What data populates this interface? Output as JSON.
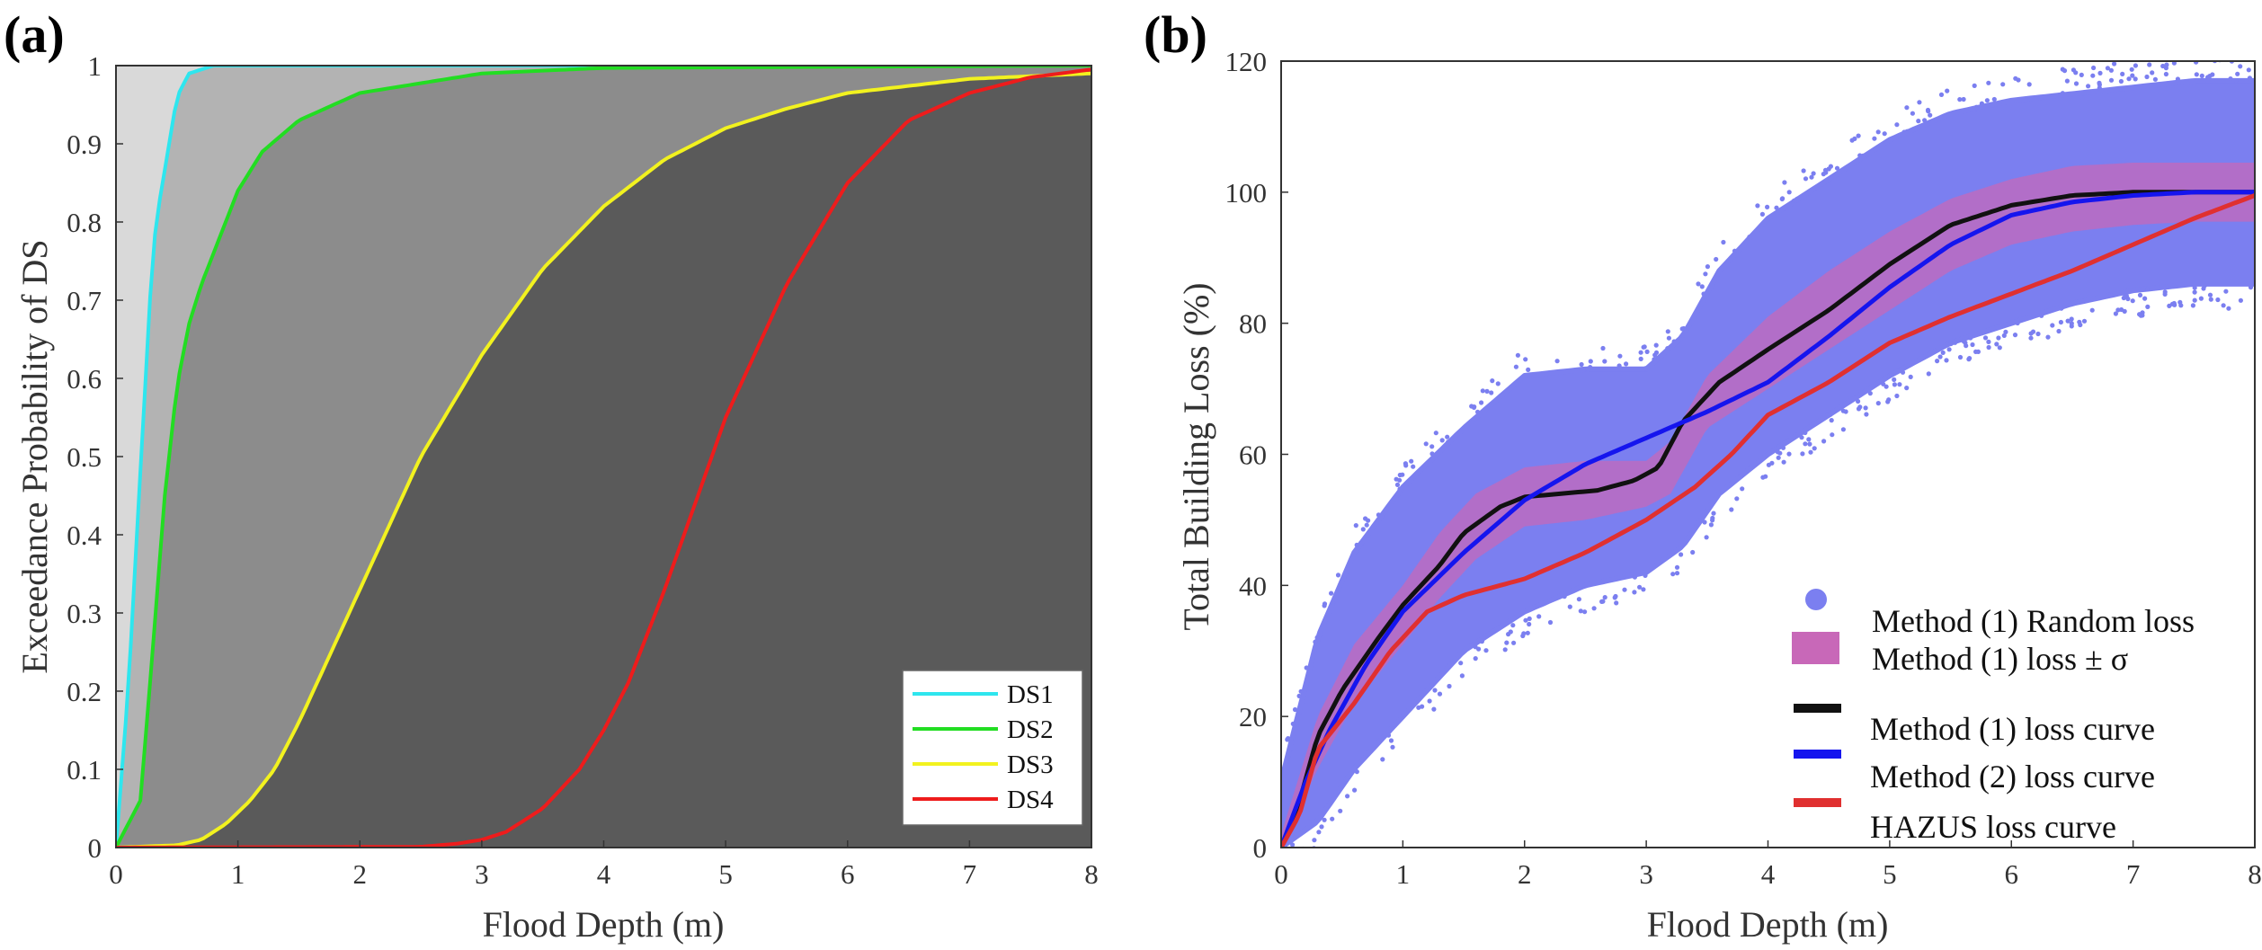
{
  "panels": {
    "a": {
      "label": "(a)"
    },
    "b": {
      "label": "(b)"
    }
  },
  "chart_data": [
    {
      "id": "a",
      "type": "line",
      "title": "",
      "xlabel": "Flood Depth (m)",
      "ylabel": "Exceedance Probability of DS",
      "xlim": [
        0,
        8
      ],
      "ylim": [
        0,
        1
      ],
      "xticks": [
        "0",
        "1",
        "2",
        "3",
        "4",
        "5",
        "6",
        "7",
        "8"
      ],
      "yticks": [
        "0",
        "0.1",
        "0.2",
        "0.3",
        "0.4",
        "0.5",
        "0.6",
        "0.7",
        "0.8",
        "0.9",
        "1"
      ],
      "grid": false,
      "legend": "bottom-right",
      "region_fills": [
        "#d9d9d9",
        "#b3b3b3",
        "#8c8c8c",
        "#5a5a5a"
      ],
      "series": [
        {
          "name": "DS1",
          "color": "#2ee6ee",
          "x": [
            0,
            0.1,
            0.2,
            0.3,
            0.35,
            0.5,
            0.6,
            0.8,
            1.0,
            8
          ],
          "y": [
            0,
            0.2,
            0.48,
            0.76,
            0.82,
            0.96,
            0.99,
            1.0,
            1.0,
            1.0
          ]
        },
        {
          "name": "DS2",
          "color": "#22dd22",
          "x": [
            0,
            0.2,
            0.3,
            0.4,
            0.5,
            0.6,
            0.7,
            0.8,
            1.0,
            1.2,
            1.5,
            2.0,
            3.0,
            4.0,
            8
          ],
          "y": [
            0,
            0.06,
            0.25,
            0.45,
            0.59,
            0.67,
            0.72,
            0.76,
            0.84,
            0.89,
            0.93,
            0.965,
            0.99,
            0.997,
            1.0
          ]
        },
        {
          "name": "DS3",
          "color": "#f2f21f",
          "x": [
            0,
            0.5,
            0.7,
            0.9,
            1.1,
            1.3,
            1.5,
            2.0,
            2.5,
            3.0,
            3.5,
            4.0,
            4.5,
            5.0,
            5.5,
            6.0,
            7.0,
            8.0
          ],
          "y": [
            0,
            0.003,
            0.01,
            0.03,
            0.06,
            0.1,
            0.16,
            0.33,
            0.5,
            0.63,
            0.74,
            0.82,
            0.88,
            0.92,
            0.945,
            0.965,
            0.983,
            0.99
          ]
        },
        {
          "name": "DS4",
          "color": "#ee1c1c",
          "x": [
            0,
            2.5,
            2.8,
            3.0,
            3.2,
            3.5,
            3.8,
            4.0,
            4.2,
            4.5,
            5.0,
            5.5,
            6.0,
            6.5,
            7.0,
            7.5,
            8.0
          ],
          "y": [
            0,
            0.001,
            0.005,
            0.01,
            0.02,
            0.05,
            0.1,
            0.15,
            0.21,
            0.33,
            0.55,
            0.72,
            0.85,
            0.93,
            0.965,
            0.985,
            0.995
          ]
        }
      ]
    },
    {
      "id": "b",
      "type": "scatter",
      "title": "",
      "xlabel": "Flood Depth (m)",
      "ylabel": "Total Building Loss (%)",
      "xlim": [
        0,
        8
      ],
      "ylim": [
        0,
        120
      ],
      "xticks": [
        "0",
        "1",
        "2",
        "3",
        "4",
        "5",
        "6",
        "7",
        "8"
      ],
      "yticks": [
        "0",
        "20",
        "40",
        "60",
        "80",
        "100",
        "120"
      ],
      "grid": false,
      "legend": "bottom-right",
      "scatter_band": {
        "name": "Method (1) Random loss",
        "color": "#7b7ff0",
        "x": [
          0,
          0.3,
          0.6,
          1.0,
          1.5,
          2.0,
          2.5,
          3.0,
          3.3,
          3.6,
          4.0,
          4.5,
          5.0,
          5.5,
          6.0,
          6.5,
          7.0,
          7.5,
          8.0
        ],
        "upper": [
          10,
          32,
          45,
          55,
          64,
          72,
          73,
          73,
          78,
          88,
          96,
          102,
          108,
          112,
          114,
          115,
          116,
          117,
          117
        ],
        "lower": [
          0,
          4,
          12,
          20,
          30,
          36,
          40,
          42,
          46,
          54,
          60,
          66,
          72,
          77,
          80,
          83,
          85,
          86,
          86
        ]
      },
      "sigma_band": {
        "name": "Method (1) loss ± σ",
        "color": "#c868b8",
        "x": [
          0,
          0.3,
          0.6,
          1.0,
          1.3,
          1.6,
          2.0,
          2.5,
          3.0,
          3.2,
          3.5,
          4.0,
          4.5,
          5.0,
          5.5,
          6.0,
          6.5,
          7.0,
          7.5,
          8.0
        ],
        "upper": [
          2,
          20,
          31,
          40,
          48,
          54,
          58,
          59,
          59,
          62,
          72,
          81,
          88,
          94,
          99,
          102,
          104,
          104.5,
          104.5,
          104.5
        ],
        "lower": [
          0,
          12,
          22,
          31,
          38,
          44,
          49,
          50,
          52,
          54,
          64,
          70,
          76,
          82,
          88,
          92,
          94,
          95,
          95.5,
          95.5
        ]
      },
      "series": [
        {
          "name": "Method (1) loss curve",
          "color": "#111111",
          "x": [
            0,
            0.15,
            0.3,
            0.5,
            0.8,
            1.0,
            1.3,
            1.5,
            1.8,
            2.0,
            2.3,
            2.6,
            2.9,
            3.1,
            3.3,
            3.6,
            4.0,
            4.5,
            5.0,
            5.5,
            6.0,
            6.5,
            7.0,
            7.5,
            8.0
          ],
          "y": [
            0,
            7,
            17,
            24,
            32,
            37,
            43,
            48,
            52,
            53.5,
            54,
            54.5,
            56,
            58,
            65,
            71,
            76,
            82,
            89,
            95,
            98,
            99.5,
            100,
            100,
            100
          ]
        },
        {
          "name": "Method (2) loss curve",
          "color": "#1515ee",
          "x": [
            0,
            0.2,
            0.4,
            0.7,
            1.0,
            1.5,
            2.0,
            2.5,
            3.0,
            3.5,
            4.0,
            4.5,
            5.0,
            5.5,
            6.0,
            6.5,
            7.0,
            7.5,
            8.0
          ],
          "y": [
            0,
            10,
            18,
            28,
            36,
            45,
            53,
            58.5,
            62.5,
            66.5,
            71,
            78,
            85.5,
            92,
            96.5,
            98.5,
            99.5,
            100,
            100
          ]
        },
        {
          "name": "HAZUS loss curve",
          "color": "#e03030",
          "x": [
            0,
            0.15,
            0.3,
            0.6,
            0.9,
            1.2,
            1.5,
            2.0,
            2.5,
            3.0,
            3.4,
            3.7,
            4.0,
            4.5,
            5.0,
            5.5,
            6.0,
            6.5,
            7.0,
            7.5,
            8.0
          ],
          "y": [
            0,
            5,
            15,
            22,
            30,
            36,
            38.5,
            41,
            45,
            50,
            55,
            60,
            66,
            71,
            77,
            81,
            84.5,
            88,
            92,
            96,
            99.5
          ]
        }
      ]
    }
  ]
}
